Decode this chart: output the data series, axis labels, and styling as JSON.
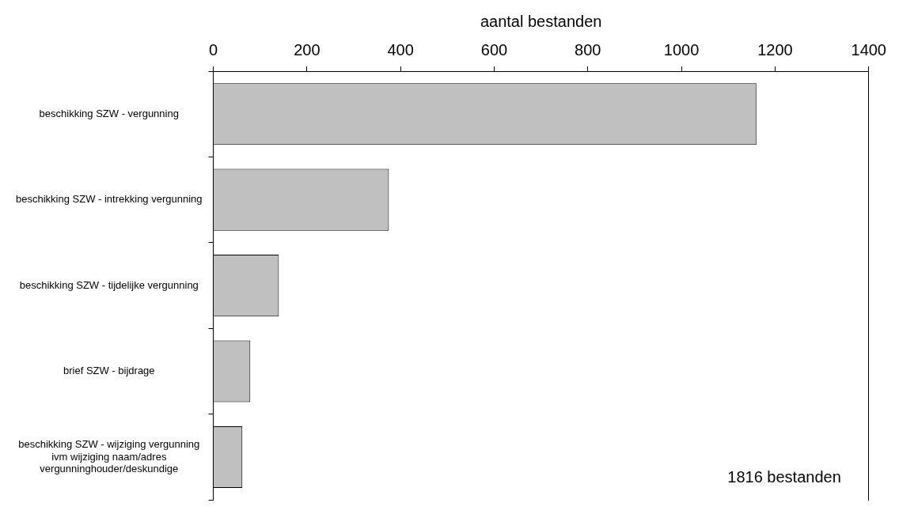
{
  "chart_data": {
    "type": "bar",
    "orientation": "horizontal",
    "xlabel": "aantal bestanden",
    "categories": [
      "beschikking SZW - vergunning",
      "beschikking SZW - intrekking vergunning",
      "beschikking SZW - tijdelijke vergunning",
      "brief SZW - bijdrage",
      "beschikking SZW - wijziging vergunning ivm wijziging naam/adres vergunninghouder/deskundige"
    ],
    "values": [
      1160,
      375,
      140,
      79,
      62
    ],
    "color": "#c0c0c0",
    "xlim": [
      0,
      1400
    ],
    "xticks": [
      0,
      200,
      400,
      600,
      800,
      1000,
      1200,
      1400
    ],
    "grid": false,
    "legend": false,
    "annotations": [
      "1816 bestanden"
    ]
  }
}
